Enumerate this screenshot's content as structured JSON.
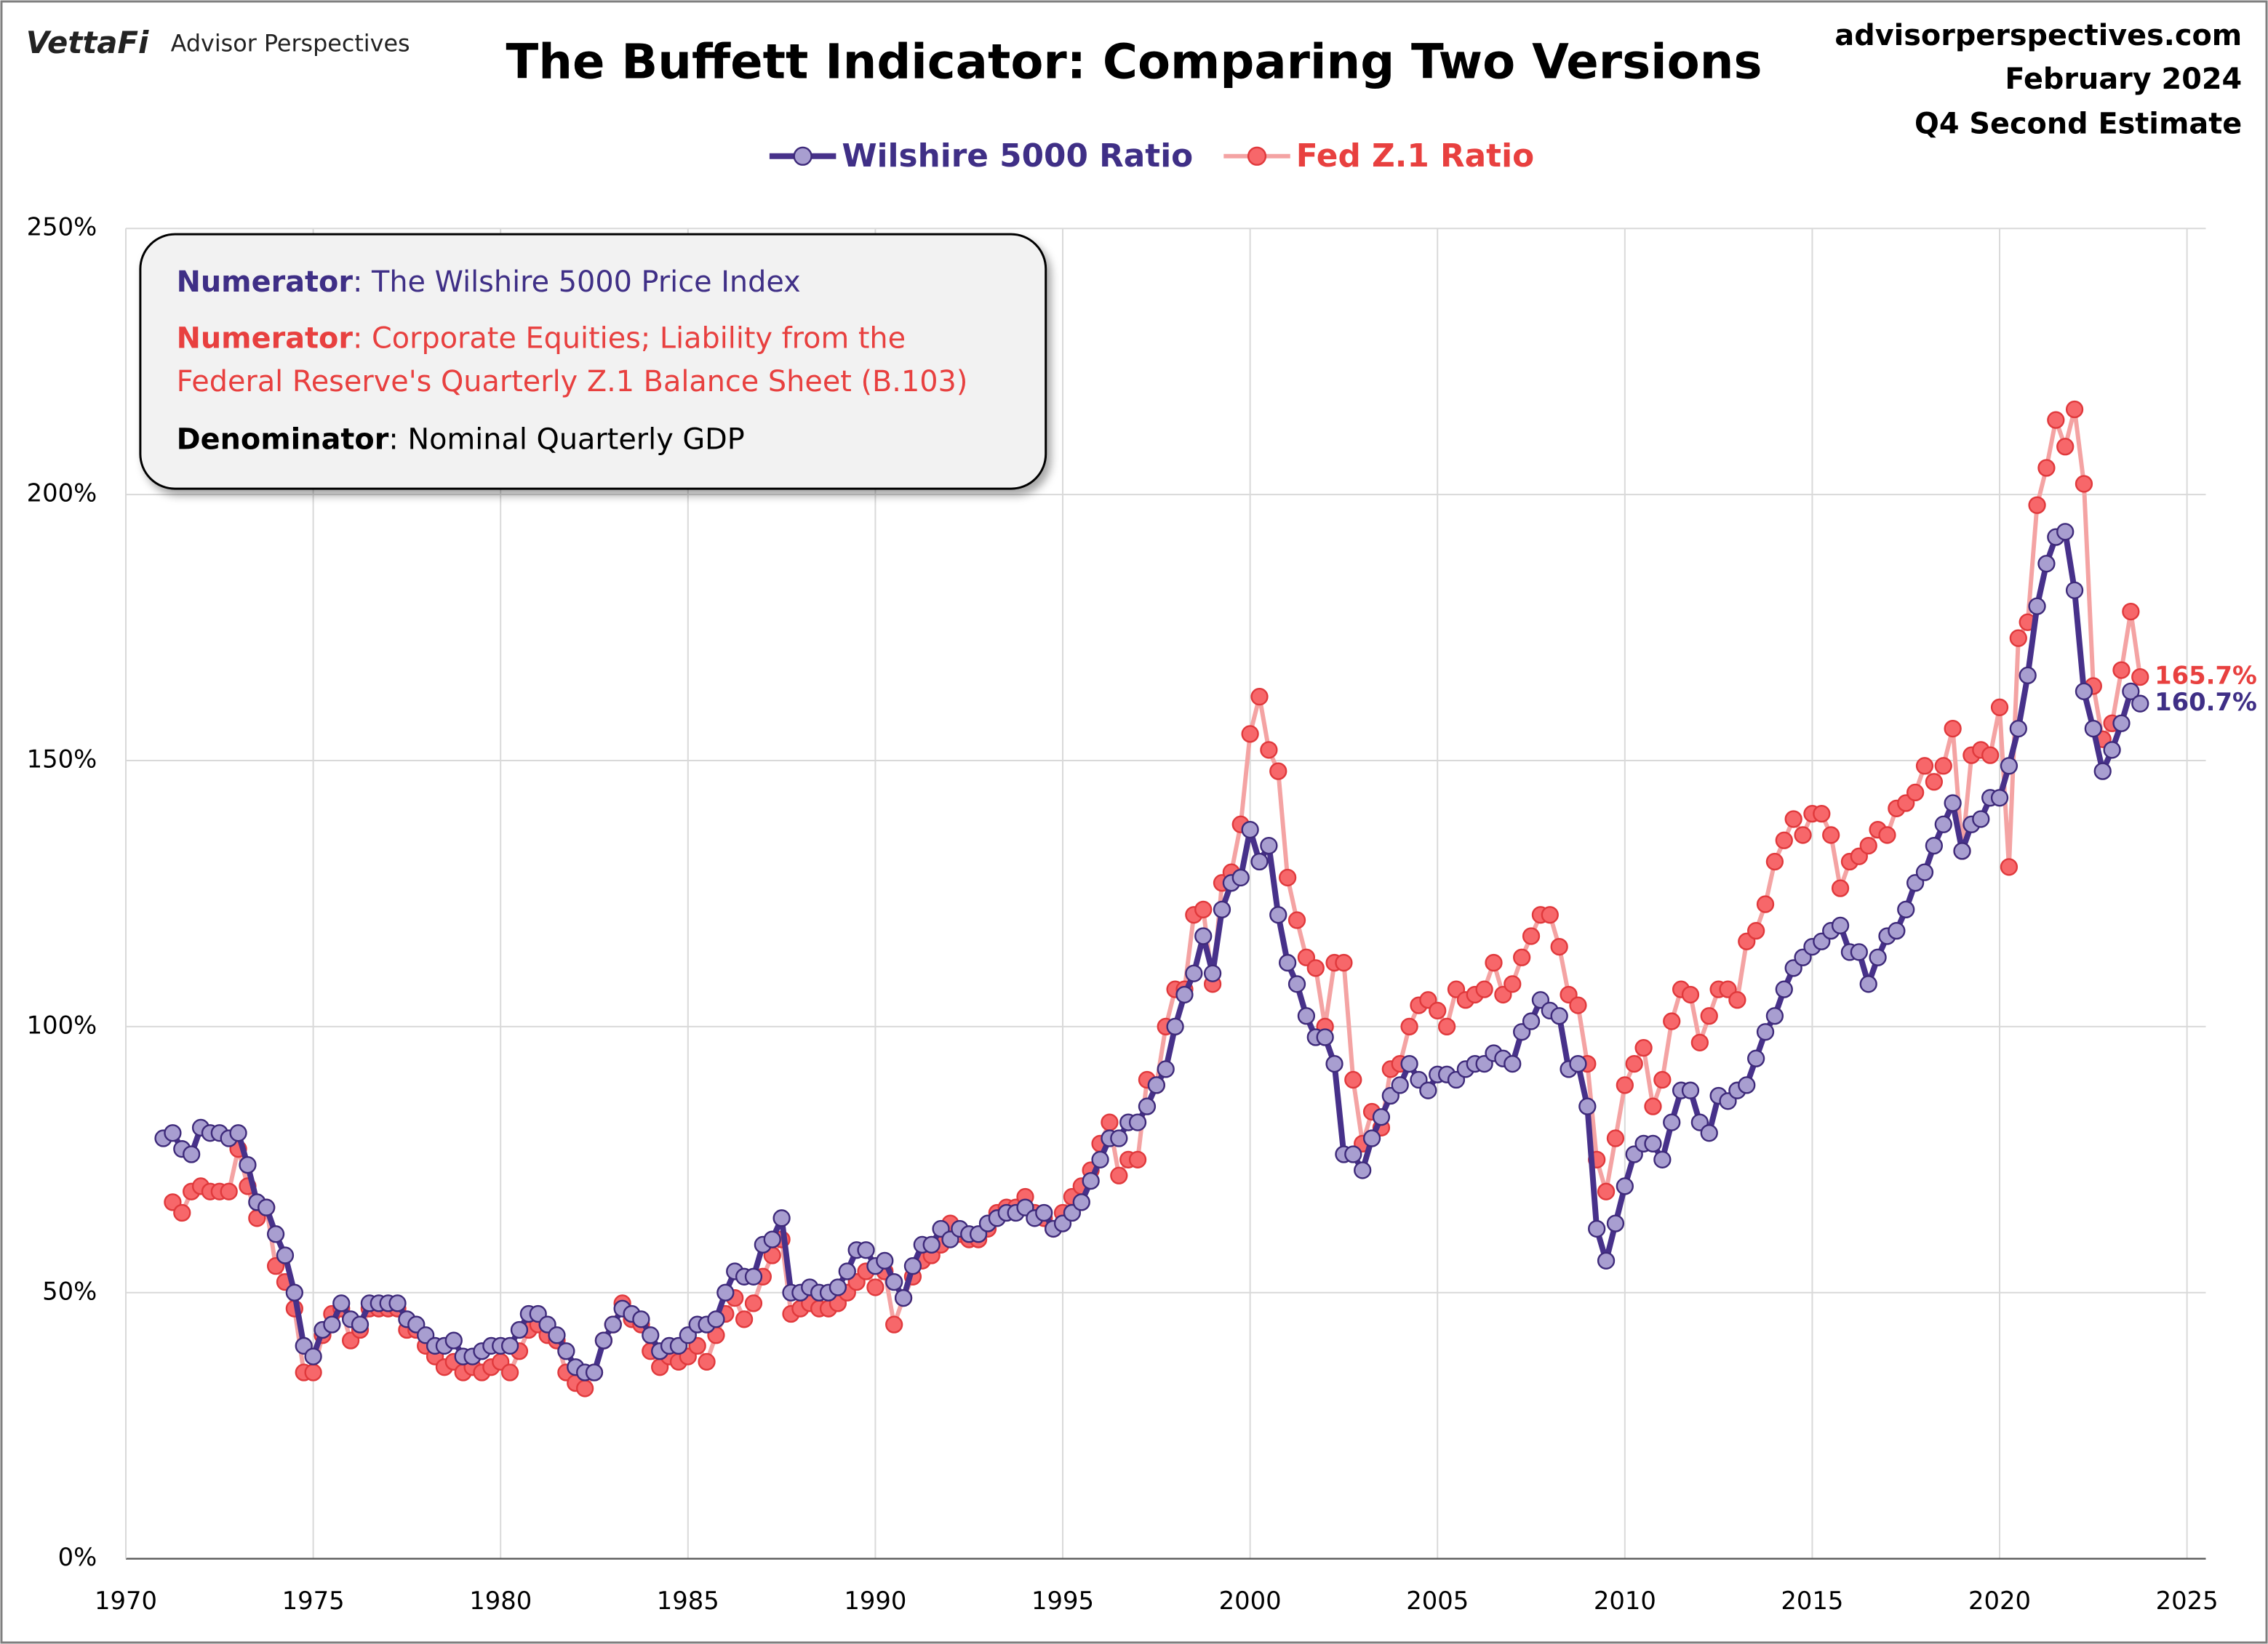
{
  "chart_data": {
    "type": "line",
    "title": "The Buffett Indicator: Comparing Two Versions",
    "brand": "VettaFi",
    "brand_sub": "Advisor Perspectives",
    "source": [
      "advisorperspectives.com",
      "February 2024",
      "Q4 Second Estimate"
    ],
    "note": [
      {
        "bold": "Numerator",
        "text": ": The Wilshire 5000 Price Index",
        "color": "#3f2f86"
      },
      {
        "bold": "Numerator",
        "text": ": Corporate Equities; Liability from the",
        "color": "#e8403f"
      },
      {
        "text": "Federal Reserve's Quarterly Z.1 Balance Sheet (B.103)",
        "color": "#e8403f"
      },
      {
        "bold": "Denominator",
        "text": ": Nominal Quarterly GDP",
        "color": "#000000"
      }
    ],
    "xlim": [
      1970,
      2025
    ],
    "xticks": [
      1970,
      1975,
      1980,
      1985,
      1990,
      1995,
      2000,
      2005,
      2010,
      2015,
      2020,
      2025
    ],
    "ylim": [
      0,
      250
    ],
    "yticks": [
      {
        "value": 0,
        "label": "0%"
      },
      {
        "value": 50,
        "label": "50%"
      },
      {
        "value": 100,
        "label": "100%"
      },
      {
        "value": 150,
        "label": "150%"
      },
      {
        "value": 200,
        "label": "200%"
      },
      {
        "value": 250,
        "label": "250%"
      }
    ],
    "grid": true,
    "x": [
      1971,
      1971.25,
      1971.5,
      1971.75,
      1972,
      1972.25,
      1972.5,
      1972.75,
      1973,
      1973.25,
      1973.5,
      1973.75,
      1974,
      1974.25,
      1974.5,
      1974.75,
      1975,
      1975.25,
      1975.5,
      1975.75,
      1976,
      1976.25,
      1976.5,
      1976.75,
      1977,
      1977.25,
      1977.5,
      1977.75,
      1978,
      1978.25,
      1978.5,
      1978.75,
      1979,
      1979.25,
      1979.5,
      1979.75,
      1980,
      1980.25,
      1980.5,
      1980.75,
      1981,
      1981.25,
      1981.5,
      1981.75,
      1982,
      1982.25,
      1982.5,
      1982.75,
      1983,
      1983.25,
      1983.5,
      1983.75,
      1984,
      1984.25,
      1984.5,
      1984.75,
      1985,
      1985.25,
      1985.5,
      1985.75,
      1986,
      1986.25,
      1986.5,
      1986.75,
      1987,
      1987.25,
      1987.5,
      1987.75,
      1988,
      1988.25,
      1988.5,
      1988.75,
      1989,
      1989.25,
      1989.5,
      1989.75,
      1990,
      1990.25,
      1990.5,
      1990.75,
      1991,
      1991.25,
      1991.5,
      1991.75,
      1992,
      1992.25,
      1992.5,
      1992.75,
      1993,
      1993.25,
      1993.5,
      1993.75,
      1994,
      1994.25,
      1994.5,
      1994.75,
      1995,
      1995.25,
      1995.5,
      1995.75,
      1996,
      1996.25,
      1996.5,
      1996.75,
      1997,
      1997.25,
      1997.5,
      1997.75,
      1998,
      1998.25,
      1998.5,
      1998.75,
      1999,
      1999.25,
      1999.5,
      1999.75,
      2000,
      2000.25,
      2000.5,
      2000.75,
      2001,
      2001.25,
      2001.5,
      2001.75,
      2002,
      2002.25,
      2002.5,
      2002.75,
      2003,
      2003.25,
      2003.5,
      2003.75,
      2004,
      2004.25,
      2004.5,
      2004.75,
      2005,
      2005.25,
      2005.5,
      2005.75,
      2006,
      2006.25,
      2006.5,
      2006.75,
      2007,
      2007.25,
      2007.5,
      2007.75,
      2008,
      2008.25,
      2008.5,
      2008.75,
      2009,
      2009.25,
      2009.5,
      2009.75,
      2010,
      2010.25,
      2010.5,
      2010.75,
      2011,
      2011.25,
      2011.5,
      2011.75,
      2012,
      2012.25,
      2012.5,
      2012.75,
      2013,
      2013.25,
      2013.5,
      2013.75,
      2014,
      2014.25,
      2014.5,
      2014.75,
      2015,
      2015.25,
      2015.5,
      2015.75,
      2016,
      2016.25,
      2016.5,
      2016.75,
      2017,
      2017.25,
      2017.5,
      2017.75,
      2018,
      2018.25,
      2018.5,
      2018.75,
      2019,
      2019.25,
      2019.5,
      2019.75,
      2020,
      2020.25,
      2020.5,
      2020.75,
      2021,
      2021.25,
      2021.5,
      2021.75,
      2022,
      2022.25,
      2022.5,
      2022.75,
      2023,
      2023.25,
      2023.5,
      2023.75
    ],
    "series": [
      {
        "name": "Fed Z.1 Ratio",
        "color": "#f4a3a3",
        "marker_color": "#f7676a",
        "marker_stroke": "#e0393c",
        "label_color": "#e8403f",
        "end_label": "165.7%",
        "values": [
          null,
          67,
          65,
          69,
          70,
          69,
          69,
          69,
          77,
          70,
          64,
          66,
          55,
          52,
          47,
          35,
          35,
          42,
          46,
          47,
          41,
          43,
          47,
          47,
          47,
          47,
          43,
          43,
          40,
          38,
          36,
          37,
          35,
          36,
          35,
          36,
          37,
          35,
          39,
          43,
          44,
          42,
          41,
          35,
          33,
          32,
          35,
          41,
          44,
          48,
          45,
          44,
          39,
          36,
          38,
          37,
          38,
          40,
          37,
          42,
          46,
          49,
          45,
          48,
          53,
          57,
          60,
          46,
          47,
          48,
          47,
          47,
          48,
          50,
          52,
          54,
          51,
          54,
          44,
          49,
          53,
          56,
          57,
          59,
          63,
          61,
          60,
          60,
          62,
          65,
          66,
          66,
          68,
          65,
          64,
          62,
          65,
          68,
          70,
          73,
          78,
          82,
          72,
          75,
          75,
          90,
          89,
          100,
          107,
          107,
          121,
          122,
          108,
          127,
          129,
          138,
          155,
          162,
          152,
          148,
          128,
          120,
          113,
          111,
          100,
          112,
          112,
          90,
          78,
          84,
          81,
          92,
          93,
          100,
          104,
          105,
          103,
          100,
          107,
          105,
          106,
          107,
          112,
          106,
          108,
          113,
          117,
          121,
          121,
          115,
          106,
          104,
          93,
          75,
          69,
          79,
          89,
          93,
          96,
          85,
          90,
          101,
          107,
          106,
          97,
          102,
          107,
          107,
          105,
          116,
          118,
          123,
          131,
          135,
          139,
          136,
          140,
          140,
          136,
          126,
          131,
          132,
          134,
          137,
          136,
          141,
          142,
          144,
          149,
          146,
          149,
          156,
          133,
          151,
          152,
          151,
          160,
          130,
          173,
          176,
          198,
          205,
          214,
          209,
          216,
          202,
          164,
          154,
          157,
          167,
          178,
          165.7
        ]
      },
      {
        "name": "Wilshire 5000 Ratio",
        "color": "#47318a",
        "marker_color": "#a89ed0",
        "marker_stroke": "#3e2a7a",
        "label_color": "#3f2f86",
        "end_label": "160.7%",
        "values": [
          79,
          80,
          77,
          76,
          81,
          80,
          80,
          79,
          80,
          74,
          67,
          66,
          61,
          57,
          50,
          40,
          38,
          43,
          44,
          48,
          45,
          44,
          48,
          48,
          48,
          48,
          45,
          44,
          42,
          40,
          40,
          41,
          38,
          38,
          39,
          40,
          40,
          40,
          43,
          46,
          46,
          44,
          42,
          39,
          36,
          35,
          35,
          41,
          44,
          47,
          46,
          45,
          42,
          39,
          40,
          40,
          42,
          44,
          44,
          45,
          50,
          54,
          53,
          53,
          59,
          60,
          64,
          50,
          50,
          51,
          50,
          50,
          51,
          54,
          58,
          58,
          55,
          56,
          52,
          49,
          55,
          59,
          59,
          62,
          60,
          62,
          61,
          61,
          63,
          64,
          65,
          65,
          66,
          64,
          65,
          62,
          63,
          65,
          67,
          71,
          75,
          79,
          79,
          82,
          82,
          85,
          89,
          92,
          100,
          106,
          110,
          117,
          110,
          122,
          127,
          128,
          137,
          131,
          134,
          121,
          112,
          108,
          102,
          98,
          98,
          93,
          76,
          76,
          73,
          79,
          83,
          87,
          89,
          93,
          90,
          88,
          91,
          91,
          90,
          92,
          93,
          93,
          95,
          94,
          93,
          99,
          101,
          105,
          103,
          102,
          92,
          93,
          85,
          62,
          56,
          63,
          70,
          76,
          78,
          78,
          75,
          82,
          88,
          88,
          82,
          80,
          87,
          86,
          88,
          89,
          94,
          99,
          102,
          107,
          111,
          113,
          115,
          116,
          118,
          119,
          114,
          114,
          108,
          113,
          117,
          118,
          122,
          127,
          129,
          134,
          138,
          142,
          133,
          138,
          139,
          143,
          143,
          149,
          156,
          166,
          179,
          187,
          192,
          193,
          182,
          163,
          156,
          148,
          152,
          157,
          163,
          160.7
        ]
      }
    ]
  }
}
